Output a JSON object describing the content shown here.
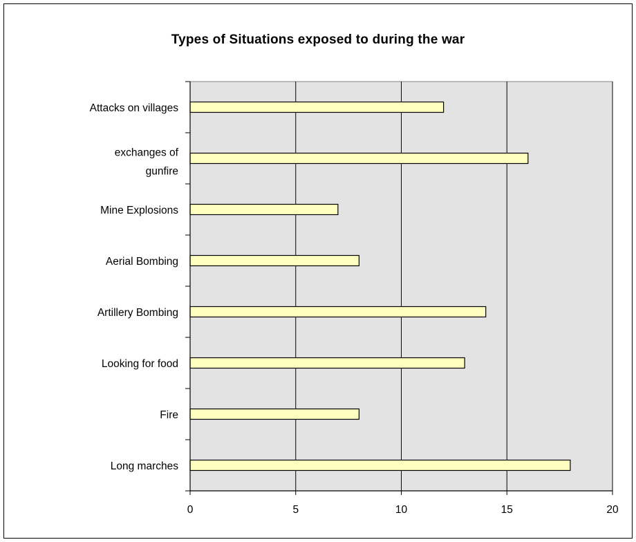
{
  "chart_data": {
    "type": "bar",
    "orientation": "horizontal",
    "title": "Types of Situations exposed to during the war",
    "xlabel": "",
    "ylabel": "",
    "categories": [
      [
        "Attacks on villages"
      ],
      [
        "exchanges of",
        "gunfire"
      ],
      [
        "Mine Explosions"
      ],
      [
        "Aerial Bombing"
      ],
      [
        "Artillery Bombing"
      ],
      [
        "Looking for food"
      ],
      [
        "Fire"
      ],
      [
        "Long marches"
      ]
    ],
    "values": [
      12,
      16,
      7,
      8,
      14,
      13,
      8,
      18
    ],
    "xlim": [
      0,
      20
    ],
    "xticks": [
      "0",
      "5",
      "10",
      "15",
      "20"
    ],
    "grid": "vertical",
    "legend": "none",
    "colors": {
      "bar_fill": "#FFFFC0",
      "plot_background": "#E3E3E3",
      "grid": "#000000"
    }
  }
}
